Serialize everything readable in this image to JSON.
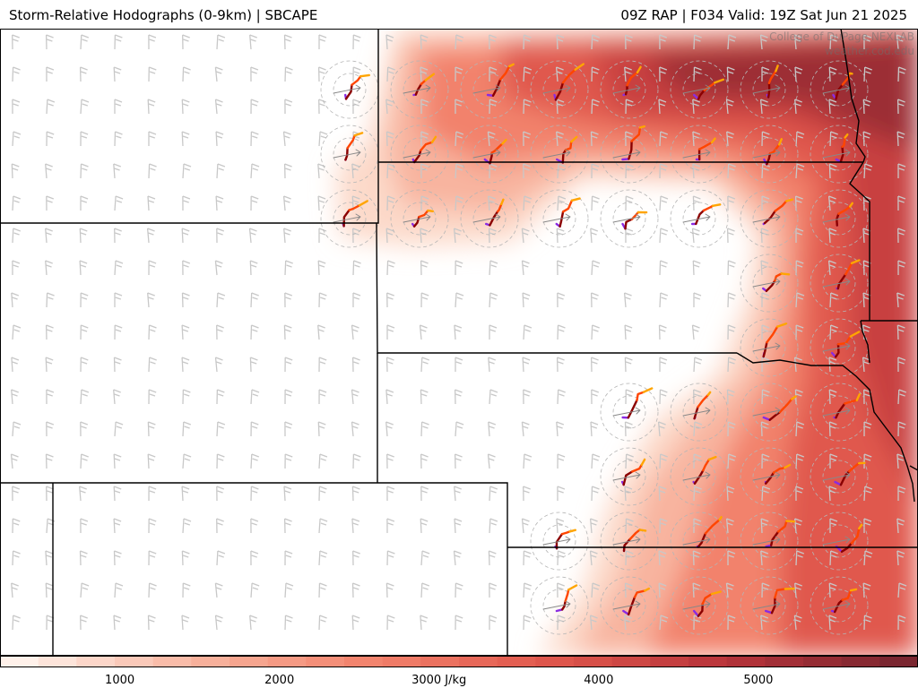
{
  "header": {
    "title_left": "Storm-Relative Hodographs (0-9km) | SBCAPE",
    "title_right": "09Z RAP | F034 Valid: 19Z Sat Jun 21 2025"
  },
  "credit": {
    "line1": "College of DuPage NEXLAB",
    "line2": "weather.cod.edu"
  },
  "colors": {
    "cape_low": "#fff1ea",
    "cape_mid": "#f2826c",
    "cape_high": "#b8343a",
    "cape_max": "#7a2630",
    "hodo_0_3km": "#8b0000",
    "hodo_3_6km": "#ff4500",
    "hodo_6_9km": "#ffa500",
    "hodo_base": "#8a2be2",
    "barb": "#c8c8c8",
    "border": "#000000"
  },
  "colorbar": {
    "min": 250,
    "max": 6000,
    "unit_label": "3000 J/kg",
    "ticks": [
      {
        "value": 1000,
        "label": "1000"
      },
      {
        "value": 2000,
        "label": "2000"
      },
      {
        "value": 3000,
        "label": "3000 J/kg"
      },
      {
        "value": 4000,
        "label": "4000"
      },
      {
        "value": 5000,
        "label": "5000"
      }
    ]
  }
}
